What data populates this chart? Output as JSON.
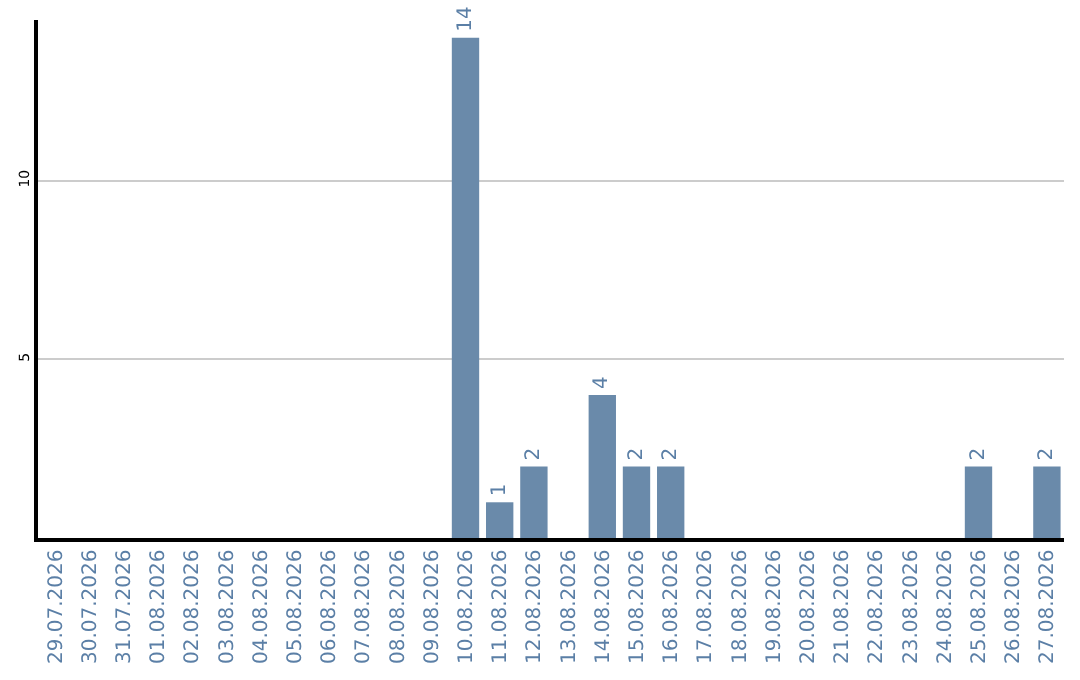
{
  "chart_data": {
    "type": "bar",
    "categories": [
      "29.07.2026",
      "30.07.2026",
      "31.07.2026",
      "01.08.2026",
      "02.08.2026",
      "03.08.2026",
      "04.08.2026",
      "05.08.2026",
      "06.08.2026",
      "07.08.2026",
      "08.08.2026",
      "09.08.2026",
      "10.08.2026",
      "11.08.2026",
      "12.08.2026",
      "13.08.2026",
      "14.08.2026",
      "15.08.2026",
      "16.08.2026",
      "17.08.2026",
      "18.08.2026",
      "19.08.2026",
      "20.08.2026",
      "21.08.2026",
      "22.08.2026",
      "23.08.2026",
      "24.08.2026",
      "25.08.2026",
      "26.08.2026",
      "27.08.2026"
    ],
    "values": [
      0,
      0,
      0,
      0,
      0,
      0,
      0,
      0,
      0,
      0,
      0,
      0,
      14,
      1,
      2,
      0,
      4,
      2,
      2,
      0,
      0,
      0,
      0,
      0,
      0,
      0,
      0,
      2,
      0,
      2
    ],
    "value_labels": [
      null,
      null,
      null,
      null,
      null,
      null,
      null,
      null,
      null,
      null,
      null,
      null,
      "14",
      "1",
      "2",
      null,
      "4",
      "2",
      "2",
      null,
      null,
      null,
      null,
      null,
      null,
      null,
      null,
      "2",
      null,
      "2"
    ],
    "color": "#6a8aaa",
    "ylim": [
      0,
      14.5
    ],
    "yticks": [
      5,
      10
    ],
    "grid": "y",
    "legend": false
  }
}
